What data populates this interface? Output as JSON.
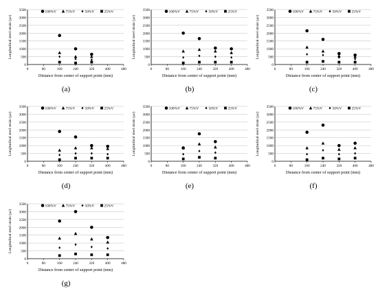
{
  "legend": {
    "series": [
      {
        "name": "100%V",
        "marker": "circle"
      },
      {
        "name": "75%V",
        "marker": "triangle"
      },
      {
        "name": "50%V",
        "marker": "diamond"
      },
      {
        "name": "25%V",
        "marker": "square"
      }
    ]
  },
  "axes": {
    "xlabel": "Distance from center of support point (mm)",
    "ylabel": "Longitudinal steel strain (με)",
    "x_ticks": [
      "0",
      "80",
      "160",
      "240",
      "320",
      "400",
      "480"
    ],
    "y_ticks": [
      "0",
      "500",
      "1000",
      "1500",
      "2000",
      "2500",
      "3000",
      "3500"
    ]
  },
  "colors": {
    "marker": "#000000",
    "axis": "#000000",
    "grid": "#bbbbbb"
  },
  "chart_data": [
    {
      "type": "scatter",
      "label": "(a)",
      "xlabel": "Distance from center of support point (mm)",
      "ylabel": "Longitudinal steel strain (με)",
      "xlim": [
        0,
        480
      ],
      "ylim": [
        0,
        3500
      ],
      "grid": true,
      "legend_position": "top",
      "x": [
        160,
        240,
        320
      ],
      "series": [
        {
          "name": "100%V",
          "values": [
            1850,
            1000,
            650
          ]
        },
        {
          "name": "75%V",
          "values": [
            750,
            500,
            500
          ]
        },
        {
          "name": "50%V",
          "values": [
            500,
            350,
            300
          ]
        },
        {
          "name": "25%V",
          "values": [
            150,
            100,
            150
          ]
        }
      ]
    },
    {
      "type": "scatter",
      "label": "(b)",
      "xlabel": "Distance from center of support point (mm)",
      "ylabel": "Longitudinal steel strain (με)",
      "xlim": [
        0,
        480
      ],
      "ylim": [
        0,
        3500
      ],
      "grid": true,
      "legend_position": "top",
      "x": [
        160,
        240,
        320,
        400
      ],
      "series": [
        {
          "name": "100%V",
          "values": [
            2000,
            1650,
            1050,
            1000
          ]
        },
        {
          "name": "75%V",
          "values": [
            850,
            950,
            850,
            750
          ]
        },
        {
          "name": "50%V",
          "values": [
            450,
            550,
            500,
            450
          ]
        },
        {
          "name": "25%V",
          "values": [
            100,
            150,
            150,
            150
          ]
        }
      ]
    },
    {
      "type": "scatter",
      "label": "(c)",
      "xlabel": "Distance from center of support point (mm)",
      "ylabel": "Longitudinal steel strain (με)",
      "xlim": [
        0,
        480
      ],
      "ylim": [
        0,
        3500
      ],
      "grid": true,
      "legend_position": "top",
      "x": [
        160,
        240,
        320,
        400
      ],
      "series": [
        {
          "name": "100%V",
          "values": [
            2150,
            1600,
            700,
            600
          ]
        },
        {
          "name": "75%V",
          "values": [
            1100,
            850,
            550,
            500
          ]
        },
        {
          "name": "50%V",
          "values": [
            650,
            600,
            450,
            350
          ]
        },
        {
          "name": "25%V",
          "values": [
            150,
            200,
            150,
            150
          ]
        }
      ]
    },
    {
      "type": "scatter",
      "label": "(d)",
      "xlabel": "Distance from center of support point (mm)",
      "ylabel": "Longitudinal steel strain (με)",
      "xlim": [
        0,
        480
      ],
      "ylim": [
        0,
        3500
      ],
      "grid": true,
      "legend_position": "top",
      "x": [
        160,
        240,
        320,
        400
      ],
      "series": [
        {
          "name": "100%V",
          "values": [
            1900,
            1550,
            1000,
            950
          ]
        },
        {
          "name": "75%V",
          "values": [
            700,
            850,
            850,
            800
          ]
        },
        {
          "name": "50%V",
          "values": [
            400,
            500,
            500,
            450
          ]
        },
        {
          "name": "25%V",
          "values": [
            100,
            200,
            200,
            200
          ]
        }
      ]
    },
    {
      "type": "scatter",
      "label": "(e)",
      "xlabel": "Distance from center of support point (mm)",
      "ylabel": "Longitudinal steel strain (με)",
      "xlim": [
        0,
        480
      ],
      "ylim": [
        0,
        3500
      ],
      "grid": true,
      "legend_position": "top",
      "x": [
        160,
        240,
        320
      ],
      "series": [
        {
          "name": "100%V",
          "values": [
            850,
            1750,
            1250
          ]
        },
        {
          "name": "75%V",
          "values": [
            850,
            1100,
            900
          ]
        },
        {
          "name": "50%V",
          "values": [
            450,
            650,
            550
          ]
        },
        {
          "name": "25%V",
          "values": [
            150,
            250,
            200
          ]
        }
      ]
    },
    {
      "type": "scatter",
      "label": "(f)",
      "xlabel": "Distance from center of support point (mm)",
      "ylabel": "Longitudinal steel strain (με)",
      "xlim": [
        0,
        480
      ],
      "ylim": [
        0,
        3500
      ],
      "grid": true,
      "legend_position": "top",
      "x": [
        160,
        240,
        320,
        400
      ],
      "series": [
        {
          "name": "100%V",
          "values": [
            1850,
            2300,
            1000,
            1150
          ]
        },
        {
          "name": "75%V",
          "values": [
            850,
            1150,
            750,
            850
          ]
        },
        {
          "name": "50%V",
          "values": [
            450,
            700,
            450,
            500
          ]
        },
        {
          "name": "25%V",
          "values": [
            100,
            200,
            150,
            200
          ]
        }
      ]
    },
    {
      "type": "scatter",
      "label": "(g)",
      "xlabel": "Distance from center of support point (mm)",
      "ylabel": "Longitudinal steel strain (με)",
      "xlim": [
        0,
        480
      ],
      "ylim": [
        0,
        3500
      ],
      "grid": true,
      "legend_position": "top",
      "x": [
        160,
        240,
        320,
        400
      ],
      "series": [
        {
          "name": "100%V",
          "values": [
            2400,
            3000,
            2000,
            1350
          ]
        },
        {
          "name": "75%V",
          "values": [
            1300,
            1600,
            1250,
            1050
          ]
        },
        {
          "name": "50%V",
          "values": [
            700,
            900,
            750,
            650
          ]
        },
        {
          "name": "25%V",
          "values": [
            200,
            300,
            250,
            250
          ]
        }
      ]
    }
  ]
}
